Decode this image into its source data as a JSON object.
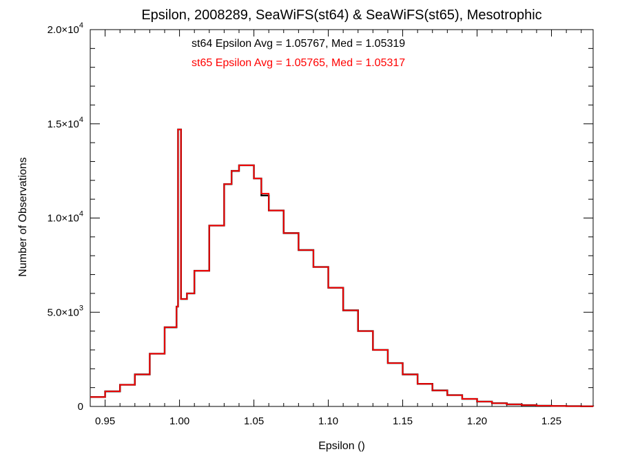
{
  "chart_data": {
    "type": "line",
    "title": "Epsilon, 2008289, SeaWiFS(st64) & SeaWiFS(st65), Mesotrophic",
    "xlabel": "Epsilon ()",
    "ylabel": "Number of Observations",
    "xlim": [
      0.94,
      1.278
    ],
    "ylim": [
      0,
      20000
    ],
    "grid": false,
    "x_ticks": [
      {
        "value": 0.95,
        "label": "0.95"
      },
      {
        "value": 1.0,
        "label": "1.00"
      },
      {
        "value": 1.05,
        "label": "1.05"
      },
      {
        "value": 1.1,
        "label": "1.10"
      },
      {
        "value": 1.15,
        "label": "1.15"
      },
      {
        "value": 1.2,
        "label": "1.20"
      },
      {
        "value": 1.25,
        "label": "1.25"
      }
    ],
    "y_ticks": [
      {
        "value": 0,
        "mant": "0",
        "exp": ""
      },
      {
        "value": 5000,
        "mant": "5.0×10",
        "exp": "3"
      },
      {
        "value": 10000,
        "mant": "1.0×10",
        "exp": "4"
      },
      {
        "value": 15000,
        "mant": "1.5×10",
        "exp": "4"
      },
      {
        "value": 20000,
        "mant": "2.0×10",
        "exp": "4"
      }
    ],
    "annotations": [
      {
        "text": "st64 Epsilon Avg = 1.05767, Med = 1.05319",
        "color": "#000000"
      },
      {
        "text": "st65 Epsilon Avg = 1.05765, Med = 1.05317",
        "color": "#ff0000"
      }
    ],
    "series": [
      {
        "name": "st64",
        "color": "#000000",
        "x": [
          0.94,
          0.95,
          0.96,
          0.97,
          0.98,
          0.99,
          0.998,
          0.999,
          1.0,
          1.001,
          1.005,
          1.01,
          1.02,
          1.03,
          1.035,
          1.04,
          1.045,
          1.05,
          1.055,
          1.06,
          1.07,
          1.08,
          1.09,
          1.1,
          1.11,
          1.12,
          1.13,
          1.14,
          1.15,
          1.16,
          1.17,
          1.18,
          1.19,
          1.2,
          1.21,
          1.22,
          1.23,
          1.24,
          1.25,
          1.26,
          1.27,
          1.278
        ],
        "y": [
          500,
          800,
          1150,
          1700,
          2800,
          4200,
          5300,
          14700,
          14700,
          5700,
          6000,
          7200,
          9600,
          11800,
          12500,
          12800,
          12800,
          12100,
          11200,
          10400,
          9200,
          8300,
          7400,
          6300,
          5100,
          4000,
          3000,
          2300,
          1700,
          1200,
          850,
          600,
          400,
          260,
          170,
          110,
          70,
          40,
          25,
          15,
          8,
          5
        ]
      },
      {
        "name": "st65",
        "color": "#ff0000",
        "x": [
          0.94,
          0.95,
          0.96,
          0.97,
          0.98,
          0.99,
          0.998,
          0.999,
          1.0,
          1.001,
          1.005,
          1.01,
          1.02,
          1.03,
          1.035,
          1.04,
          1.045,
          1.05,
          1.055,
          1.06,
          1.07,
          1.08,
          1.09,
          1.1,
          1.11,
          1.12,
          1.13,
          1.14,
          1.15,
          1.16,
          1.17,
          1.18,
          1.19,
          1.2,
          1.21,
          1.22,
          1.23,
          1.24,
          1.25,
          1.26,
          1.27,
          1.278
        ],
        "y": [
          500,
          800,
          1150,
          1700,
          2800,
          4200,
          5300,
          14700,
          14700,
          5700,
          6000,
          7200,
          9600,
          11800,
          12500,
          12800,
          12800,
          12100,
          11300,
          10400,
          9200,
          8300,
          7400,
          6300,
          5100,
          4000,
          3000,
          2300,
          1700,
          1200,
          850,
          600,
          400,
          260,
          170,
          110,
          70,
          40,
          25,
          15,
          8,
          5
        ]
      }
    ]
  }
}
